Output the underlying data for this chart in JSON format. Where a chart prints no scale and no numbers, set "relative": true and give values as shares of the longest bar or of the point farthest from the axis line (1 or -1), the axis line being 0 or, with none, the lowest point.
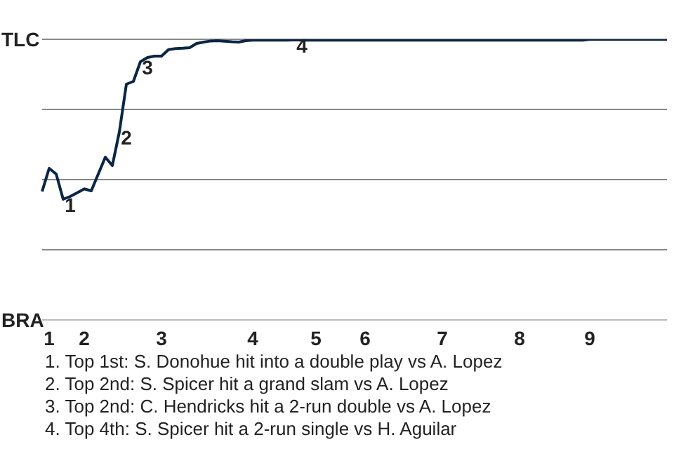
{
  "chart_data": {
    "type": "line",
    "relative": true,
    "grid": "y",
    "marker": "none",
    "line_style": "solid",
    "categories": [
      null,
      "1",
      null,
      null,
      null,
      null,
      "2",
      null,
      null,
      null,
      null,
      null,
      null,
      null,
      null,
      null,
      null,
      "3",
      null,
      null,
      null,
      null,
      null,
      null,
      null,
      null,
      null,
      null,
      null,
      null,
      "4",
      null,
      null,
      null,
      null,
      null,
      null,
      null,
      null,
      "5",
      null,
      null,
      null,
      null,
      null,
      null,
      "6",
      null,
      null,
      null,
      null,
      null,
      null,
      null,
      null,
      null,
      null,
      "7",
      null,
      null,
      null,
      null,
      null,
      null,
      null,
      null,
      null,
      null,
      "8",
      null,
      null,
      null,
      null,
      null,
      null,
      null,
      null,
      null,
      "9",
      null,
      null,
      null,
      null,
      null,
      null,
      null,
      null,
      null,
      null,
      null
    ],
    "series": [
      {
        "color": "#0b2545",
        "values": [
          0.458,
          0.54,
          0.52,
          0.43,
          0.44,
          0.453,
          0.467,
          0.46,
          0.52,
          0.58,
          0.55,
          0.67,
          0.84,
          0.85,
          0.92,
          0.935,
          0.94,
          0.94,
          0.963,
          0.967,
          0.968,
          0.97,
          0.985,
          0.99,
          0.994,
          0.995,
          0.993,
          0.991,
          0.99,
          0.995,
          0.997,
          0.997,
          0.997,
          0.997,
          0.997,
          0.997,
          0.998,
          0.997,
          0.997,
          0.997,
          0.997,
          0.997,
          0.997,
          0.997,
          0.997,
          0.997,
          0.997,
          0.997,
          0.997,
          0.997,
          0.997,
          0.997,
          0.997,
          0.997,
          0.997,
          0.997,
          0.997,
          0.997,
          0.997,
          0.997,
          0.997,
          0.997,
          0.997,
          0.997,
          0.997,
          0.997,
          0.997,
          0.997,
          0.997,
          0.997,
          0.997,
          0.997,
          0.997,
          0.997,
          0.997,
          0.997,
          0.997,
          0.997,
          1,
          1,
          1,
          1,
          1,
          1,
          1,
          1,
          1,
          1,
          1,
          1
        ]
      }
    ],
    "annotations": [
      "TLC",
      "BRA",
      {
        "text": "1",
        "y": 0.43
      },
      {
        "text": "2",
        "y": 0.67
      },
      {
        "text": "3",
        "y": 0.92
      },
      {
        "text": "4",
        "y": 0.998
      },
      "1. Top 1st: S. Donohue hit into a double play vs A. Lopez",
      "2. Top 2nd: S. Spicer hit a grand slam vs A. Lopez",
      "3. Top 2nd: C. Hendricks hit a 2-run double vs A. Lopez",
      "4. Top 4th: S. Spicer hit a 2-run single vs H. Aguilar"
    ]
  }
}
